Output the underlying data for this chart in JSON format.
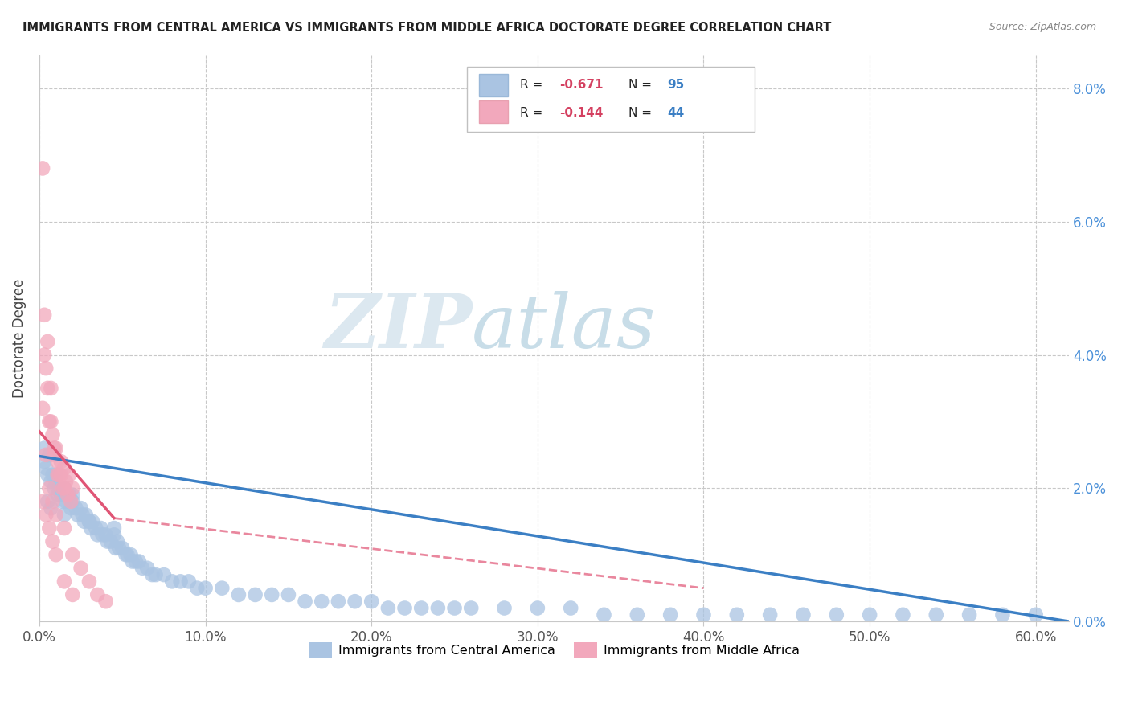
{
  "title": "IMMIGRANTS FROM CENTRAL AMERICA VS IMMIGRANTS FROM MIDDLE AFRICA DOCTORATE DEGREE CORRELATION CHART",
  "source": "Source: ZipAtlas.com",
  "ylabel_label": "Doctorate Degree",
  "legend_labels": [
    "Immigrants from Central America",
    "Immigrants from Middle Africa"
  ],
  "blue_color": "#aac4e2",
  "pink_color": "#f2a8bc",
  "blue_line_color": "#3b7fc4",
  "pink_line_color": "#e05575",
  "pink_line_dash": "#e05575",
  "watermark_zip": "ZIP",
  "watermark_atlas": "atlas",
  "xlim": [
    0.0,
    0.62
  ],
  "ylim": [
    0.0,
    0.085
  ],
  "x_tick_vals": [
    0.0,
    0.1,
    0.2,
    0.3,
    0.4,
    0.5,
    0.6
  ],
  "x_tick_labels": [
    "0.0%",
    "10.0%",
    "20.0%",
    "30.0%",
    "40.0%",
    "50.0%",
    "60.0%"
  ],
  "y_tick_vals": [
    0.0,
    0.02,
    0.04,
    0.06,
    0.08
  ],
  "y_tick_labels": [
    "0.0%",
    "2.0%",
    "4.0%",
    "6.0%",
    "8.0%"
  ],
  "legend_r1": "R = ",
  "legend_v1": "-0.671",
  "legend_n1": "N = ",
  "legend_nv1": "95",
  "legend_r2": "R = ",
  "legend_v2": "-0.144",
  "legend_n2": "N = ",
  "legend_nv2": "44",
  "blue_scatter_x": [
    0.003,
    0.004,
    0.005,
    0.006,
    0.007,
    0.008,
    0.009,
    0.01,
    0.011,
    0.012,
    0.013,
    0.014,
    0.015,
    0.016,
    0.018,
    0.019,
    0.02,
    0.022,
    0.023,
    0.025,
    0.026,
    0.027,
    0.028,
    0.03,
    0.031,
    0.032,
    0.034,
    0.035,
    0.037,
    0.038,
    0.04,
    0.041,
    0.043,
    0.045,
    0.046,
    0.047,
    0.048,
    0.05,
    0.052,
    0.053,
    0.055,
    0.056,
    0.058,
    0.06,
    0.062,
    0.065,
    0.068,
    0.07,
    0.075,
    0.08,
    0.085,
    0.09,
    0.095,
    0.1,
    0.11,
    0.12,
    0.13,
    0.14,
    0.15,
    0.16,
    0.17,
    0.18,
    0.19,
    0.2,
    0.21,
    0.22,
    0.23,
    0.24,
    0.25,
    0.26,
    0.28,
    0.3,
    0.32,
    0.34,
    0.36,
    0.38,
    0.4,
    0.42,
    0.44,
    0.46,
    0.48,
    0.5,
    0.52,
    0.54,
    0.56,
    0.58,
    0.6,
    0.003,
    0.005,
    0.007,
    0.01,
    0.015,
    0.02,
    0.03,
    0.045
  ],
  "blue_scatter_y": [
    0.024,
    0.023,
    0.022,
    0.025,
    0.021,
    0.022,
    0.02,
    0.021,
    0.019,
    0.02,
    0.019,
    0.018,
    0.02,
    0.018,
    0.019,
    0.017,
    0.018,
    0.017,
    0.016,
    0.017,
    0.016,
    0.015,
    0.016,
    0.015,
    0.014,
    0.015,
    0.014,
    0.013,
    0.014,
    0.013,
    0.013,
    0.012,
    0.012,
    0.013,
    0.011,
    0.012,
    0.011,
    0.011,
    0.01,
    0.01,
    0.01,
    0.009,
    0.009,
    0.009,
    0.008,
    0.008,
    0.007,
    0.007,
    0.007,
    0.006,
    0.006,
    0.006,
    0.005,
    0.005,
    0.005,
    0.004,
    0.004,
    0.004,
    0.004,
    0.003,
    0.003,
    0.003,
    0.003,
    0.003,
    0.002,
    0.002,
    0.002,
    0.002,
    0.002,
    0.002,
    0.002,
    0.002,
    0.002,
    0.001,
    0.001,
    0.001,
    0.001,
    0.001,
    0.001,
    0.001,
    0.001,
    0.001,
    0.001,
    0.001,
    0.001,
    0.001,
    0.001,
    0.026,
    0.018,
    0.017,
    0.022,
    0.016,
    0.019,
    0.015,
    0.014
  ],
  "pink_scatter_x": [
    0.002,
    0.003,
    0.004,
    0.005,
    0.006,
    0.007,
    0.008,
    0.009,
    0.01,
    0.011,
    0.012,
    0.013,
    0.014,
    0.015,
    0.016,
    0.017,
    0.018,
    0.019,
    0.02,
    0.003,
    0.005,
    0.007,
    0.009,
    0.011,
    0.013,
    0.015,
    0.002,
    0.004,
    0.006,
    0.008,
    0.01,
    0.015,
    0.02,
    0.025,
    0.03,
    0.035,
    0.04,
    0.002,
    0.004,
    0.006,
    0.008,
    0.01,
    0.015,
    0.02
  ],
  "pink_scatter_y": [
    0.068,
    0.04,
    0.038,
    0.042,
    0.03,
    0.035,
    0.028,
    0.025,
    0.026,
    0.024,
    0.022,
    0.024,
    0.02,
    0.023,
    0.021,
    0.019,
    0.022,
    0.018,
    0.02,
    0.046,
    0.035,
    0.03,
    0.026,
    0.022,
    0.022,
    0.02,
    0.032,
    0.025,
    0.02,
    0.018,
    0.016,
    0.014,
    0.01,
    0.008,
    0.006,
    0.004,
    0.003,
    0.018,
    0.016,
    0.014,
    0.012,
    0.01,
    0.006,
    0.004
  ],
  "blue_trend_x0": 0.0,
  "blue_trend_y0": 0.0248,
  "blue_trend_x1": 0.62,
  "blue_trend_y1": 0.0,
  "pink_trend_x0": 0.0,
  "pink_trend_y0": 0.0285,
  "pink_trend_x1": 0.045,
  "pink_trend_y1": 0.0155,
  "pink_trend_dash_x0": 0.045,
  "pink_trend_dash_y0": 0.0155,
  "pink_trend_dash_x1": 0.4,
  "pink_trend_dash_y1": 0.005
}
